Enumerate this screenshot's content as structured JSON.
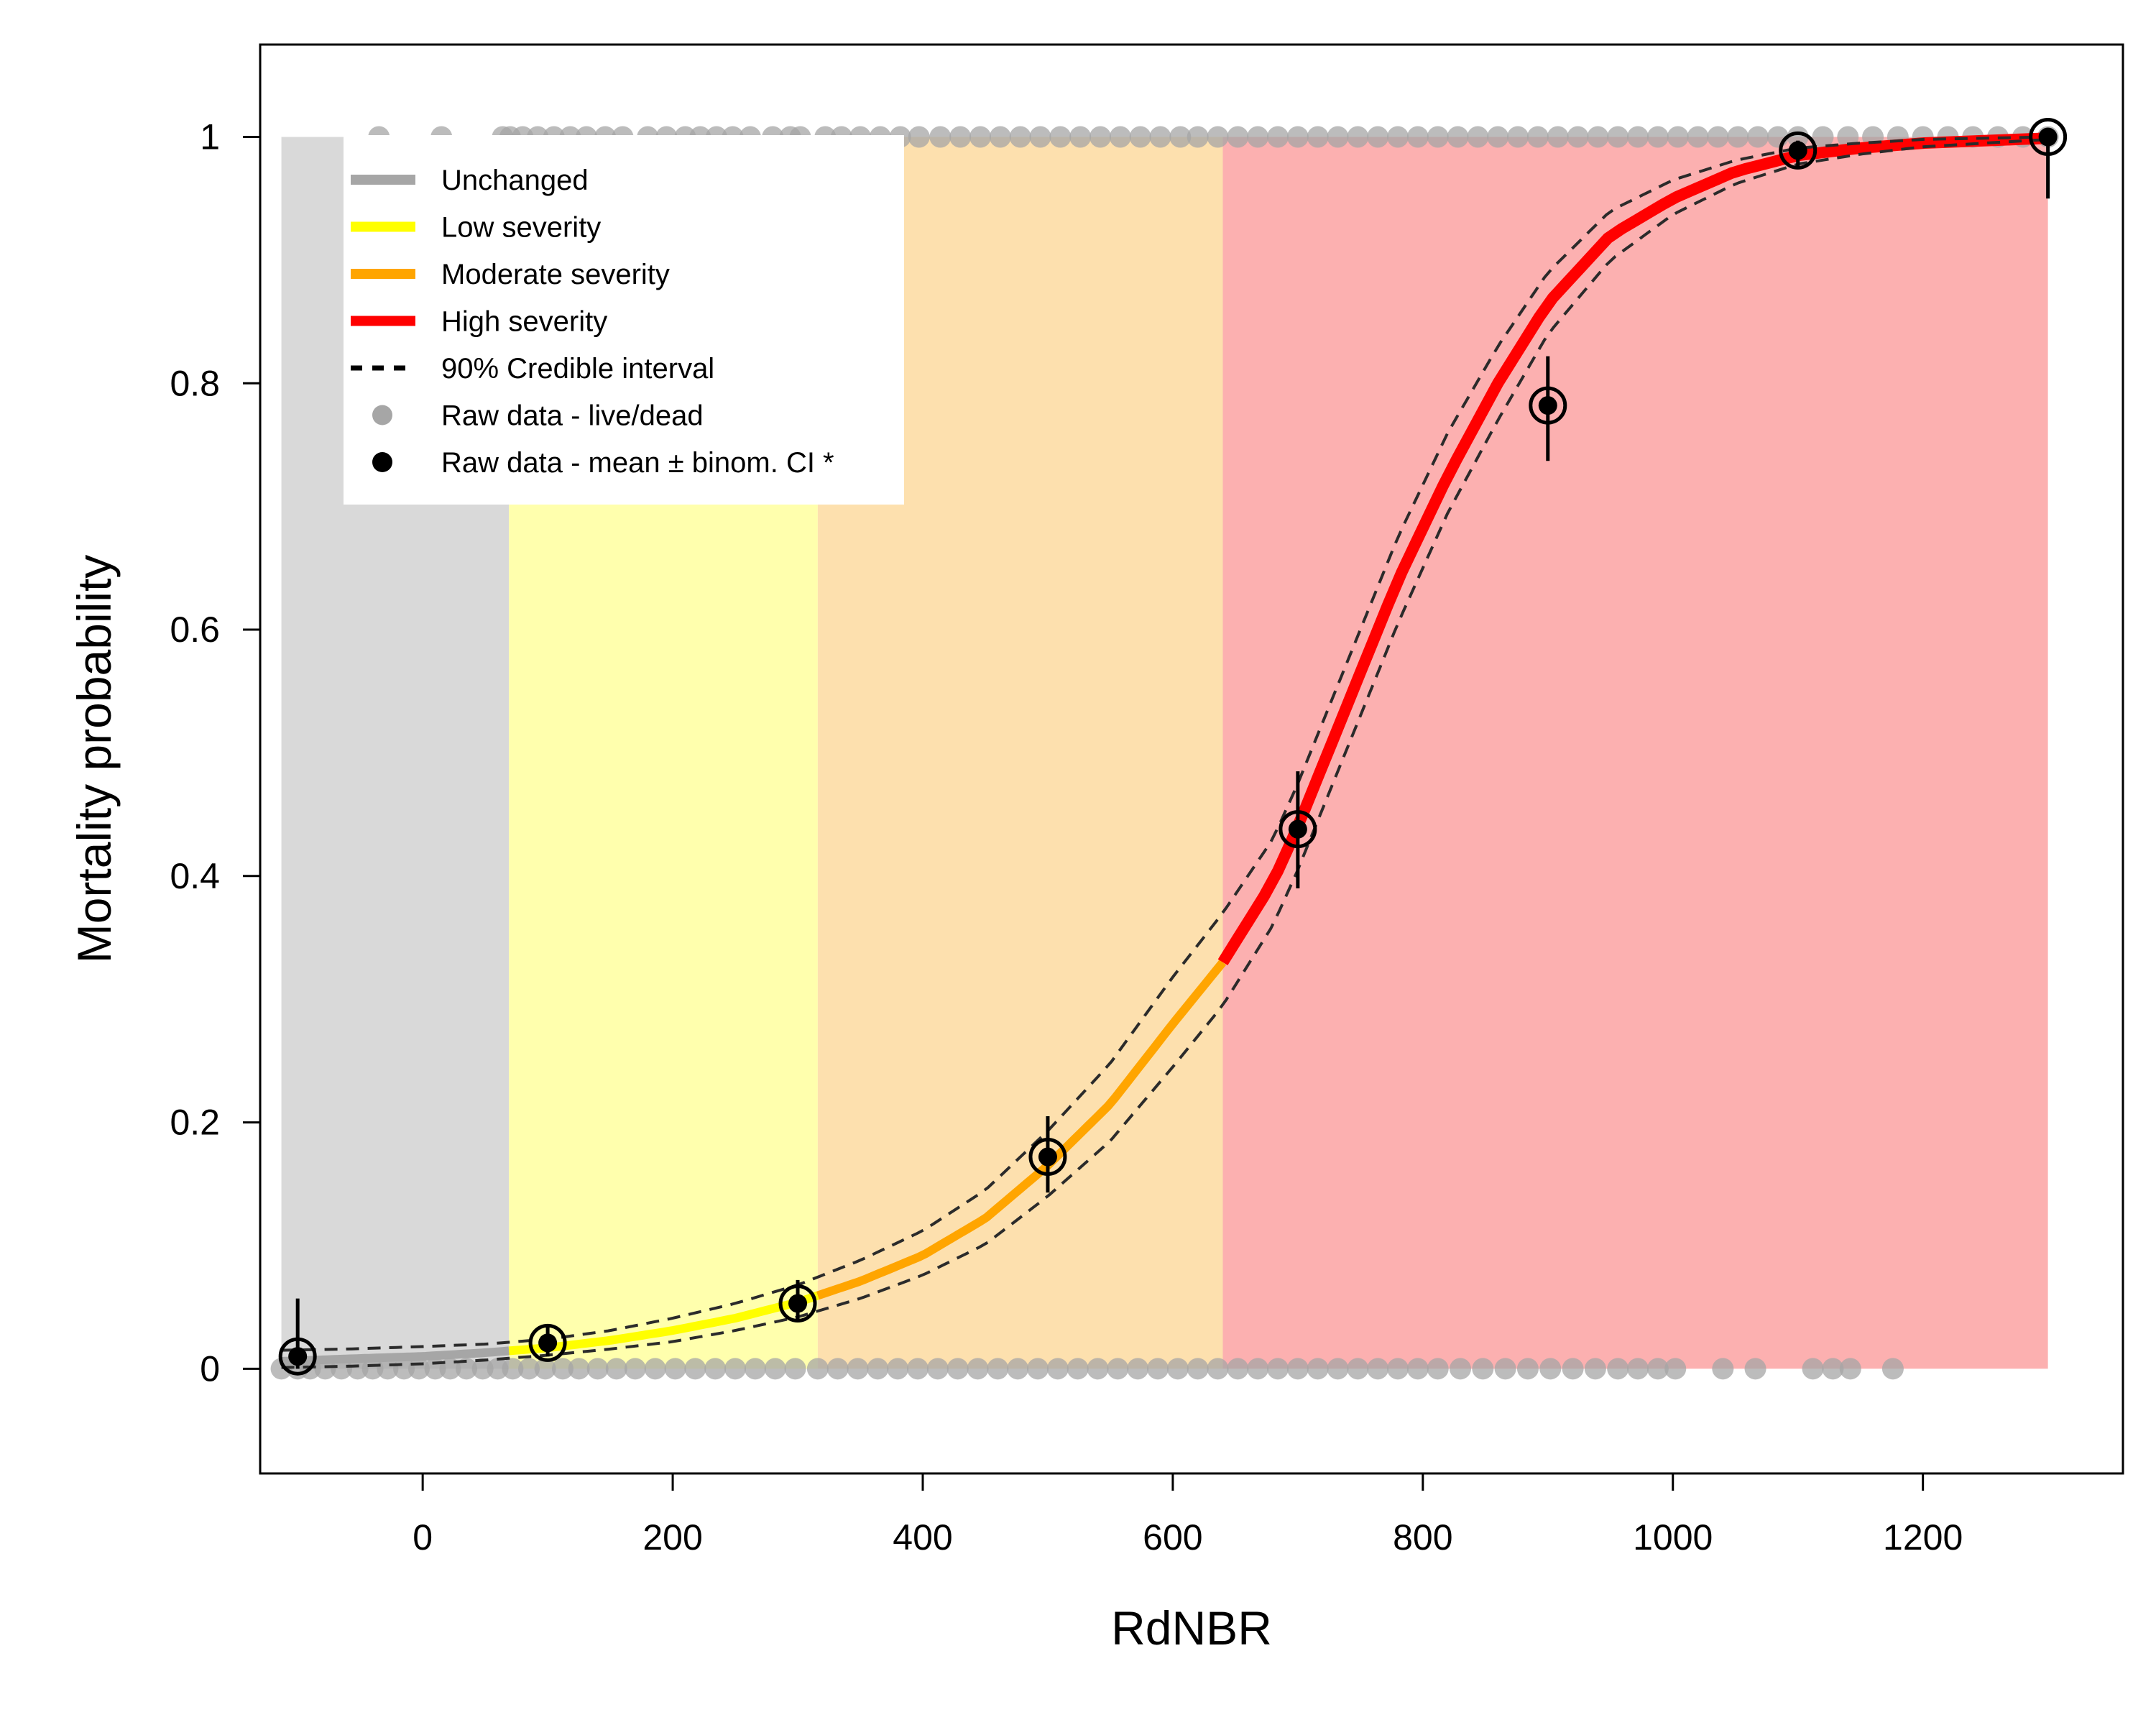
{
  "chart_data": {
    "type": "line",
    "xlabel": "RdNBR",
    "ylabel": "Mortality probability",
    "xlim": [
      -130,
      1360
    ],
    "ylim": [
      -0.085,
      1.075
    ],
    "x_ticks": [
      0,
      200,
      400,
      600,
      800,
      1000,
      1200
    ],
    "x_tick_labels": [
      "0",
      "200",
      "400",
      "600",
      "800",
      "1000",
      "1200"
    ],
    "y_ticks": [
      0,
      0.2,
      0.4,
      0.6,
      0.8,
      1
    ],
    "y_tick_labels": [
      "0",
      "0.2",
      "0.4",
      "0.6",
      "0.8",
      "1"
    ],
    "grid": false,
    "legend_position": "top-left",
    "legend": [
      {
        "label": "Unchanged",
        "kind": "thick-line",
        "color": "#a6a6a6"
      },
      {
        "label": "Low severity",
        "kind": "thick-line",
        "color": "#ffff00"
      },
      {
        "label": "Moderate severity",
        "kind": "thick-line",
        "color": "#ffa500"
      },
      {
        "label": "High severity",
        "kind": "thick-line",
        "color": "#ff0000"
      },
      {
        "label": "90% Credible interval",
        "kind": "dashed-line",
        "color": "#000000"
      },
      {
        "label": "Raw data - live/dead",
        "kind": "point",
        "color": "#a6a6a6"
      },
      {
        "label": "Raw data - mean ± binom. CI *",
        "kind": "point",
        "color": "#000000"
      }
    ],
    "severity_bands": [
      {
        "name": "Unchanged",
        "x_from": -113,
        "x_to": 69,
        "color": "#d9d9d9"
      },
      {
        "name": "Low severity",
        "x_from": 69,
        "x_to": 316,
        "color": "#ffffad"
      },
      {
        "name": "Moderate severity",
        "x_from": 316,
        "x_to": 640,
        "color": "#fde0ae"
      },
      {
        "name": "High severity",
        "x_from": 640,
        "x_to": 1300,
        "color": "#fcb0b0"
      }
    ],
    "fitted_curve": {
      "x": [
        -113,
        -60,
        0,
        50,
        100,
        150,
        200,
        250,
        300,
        350,
        400,
        450,
        500,
        550,
        600,
        640,
        680,
        700,
        740,
        780,
        820,
        860,
        900,
        950,
        1000,
        1050,
        1100,
        1150,
        1200,
        1250,
        1300
      ],
      "y": [
        0.006,
        0.008,
        0.01,
        0.013,
        0.017,
        0.023,
        0.031,
        0.041,
        0.054,
        0.071,
        0.092,
        0.122,
        0.165,
        0.215,
        0.28,
        0.33,
        0.395,
        0.44,
        0.54,
        0.64,
        0.725,
        0.8,
        0.865,
        0.92,
        0.95,
        0.972,
        0.985,
        0.991,
        0.995,
        0.997,
        0.999
      ]
    },
    "credible_interval": {
      "lower": [
        0.001,
        0.002,
        0.004,
        0.007,
        0.011,
        0.016,
        0.022,
        0.031,
        0.042,
        0.057,
        0.076,
        0.101,
        0.14,
        0.185,
        0.245,
        0.295,
        0.36,
        0.405,
        0.505,
        0.605,
        0.695,
        0.77,
        0.84,
        0.9,
        0.937,
        0.962,
        0.978,
        0.986,
        0.992,
        0.995,
        0.998
      ],
      "upper": [
        0.015,
        0.016,
        0.018,
        0.02,
        0.024,
        0.031,
        0.041,
        0.053,
        0.068,
        0.088,
        0.112,
        0.145,
        0.193,
        0.248,
        0.318,
        0.37,
        0.43,
        0.475,
        0.575,
        0.675,
        0.76,
        0.83,
        0.89,
        0.94,
        0.965,
        0.981,
        0.991,
        0.995,
        0.998,
        0.999,
        1.0
      ]
    },
    "binned_means": [
      {
        "x": -100,
        "y": 0.01,
        "ci_low": 0.0,
        "ci_high": 0.057
      },
      {
        "x": 100,
        "y": 0.021,
        "ci_low": 0.01,
        "ci_high": 0.035
      },
      {
        "x": 300,
        "y": 0.053,
        "ci_low": 0.04,
        "ci_high": 0.072
      },
      {
        "x": 500,
        "y": 0.172,
        "ci_low": 0.143,
        "ci_high": 0.205
      },
      {
        "x": 700,
        "y": 0.438,
        "ci_low": 0.39,
        "ci_high": 0.485
      },
      {
        "x": 900,
        "y": 0.782,
        "ci_low": 0.737,
        "ci_high": 0.822
      },
      {
        "x": 1100,
        "y": 0.989,
        "ci_low": 0.975,
        "ci_high": 0.997
      },
      {
        "x": 1300,
        "y": 1.0,
        "ci_low": 0.95,
        "ci_high": 1.0
      }
    ],
    "raw_dead_x": [
      -35,
      15,
      64,
      70,
      80,
      92,
      105,
      118,
      131,
      146,
      160,
      180,
      195,
      210,
      222,
      235,
      248,
      262,
      280,
      294,
      302,
      322,
      335,
      350,
      366,
      382,
      397,
      414,
      430,
      446,
      462,
      478,
      494,
      510,
      526,
      542,
      558,
      574,
      590,
      606,
      620,
      636,
      652,
      668,
      684,
      700,
      716,
      732,
      748,
      764,
      780,
      796,
      812,
      828,
      844,
      860,
      876,
      892,
      908,
      924,
      940,
      956,
      972,
      988,
      1004,
      1020,
      1036,
      1052,
      1068,
      1084,
      1100,
      1120,
      1140,
      1160,
      1180,
      1200,
      1220,
      1240,
      1260,
      1280,
      1300
    ],
    "raw_live_x": [
      -113,
      -100,
      -90,
      -78,
      -65,
      -52,
      -40,
      -28,
      -15,
      -3,
      10,
      22,
      35,
      48,
      60,
      72,
      85,
      98,
      112,
      125,
      140,
      155,
      170,
      186,
      202,
      218,
      234,
      250,
      266,
      282,
      298,
      316,
      332,
      348,
      364,
      380,
      396,
      412,
      428,
      444,
      460,
      476,
      492,
      508,
      524,
      540,
      556,
      572,
      588,
      604,
      620,
      636,
      652,
      668,
      684,
      700,
      716,
      732,
      748,
      764,
      780,
      796,
      812,
      830,
      848,
      866,
      884,
      902,
      920,
      938,
      956,
      972,
      988,
      1002,
      1040,
      1066,
      1112,
      1128,
      1142,
      1176
    ]
  }
}
